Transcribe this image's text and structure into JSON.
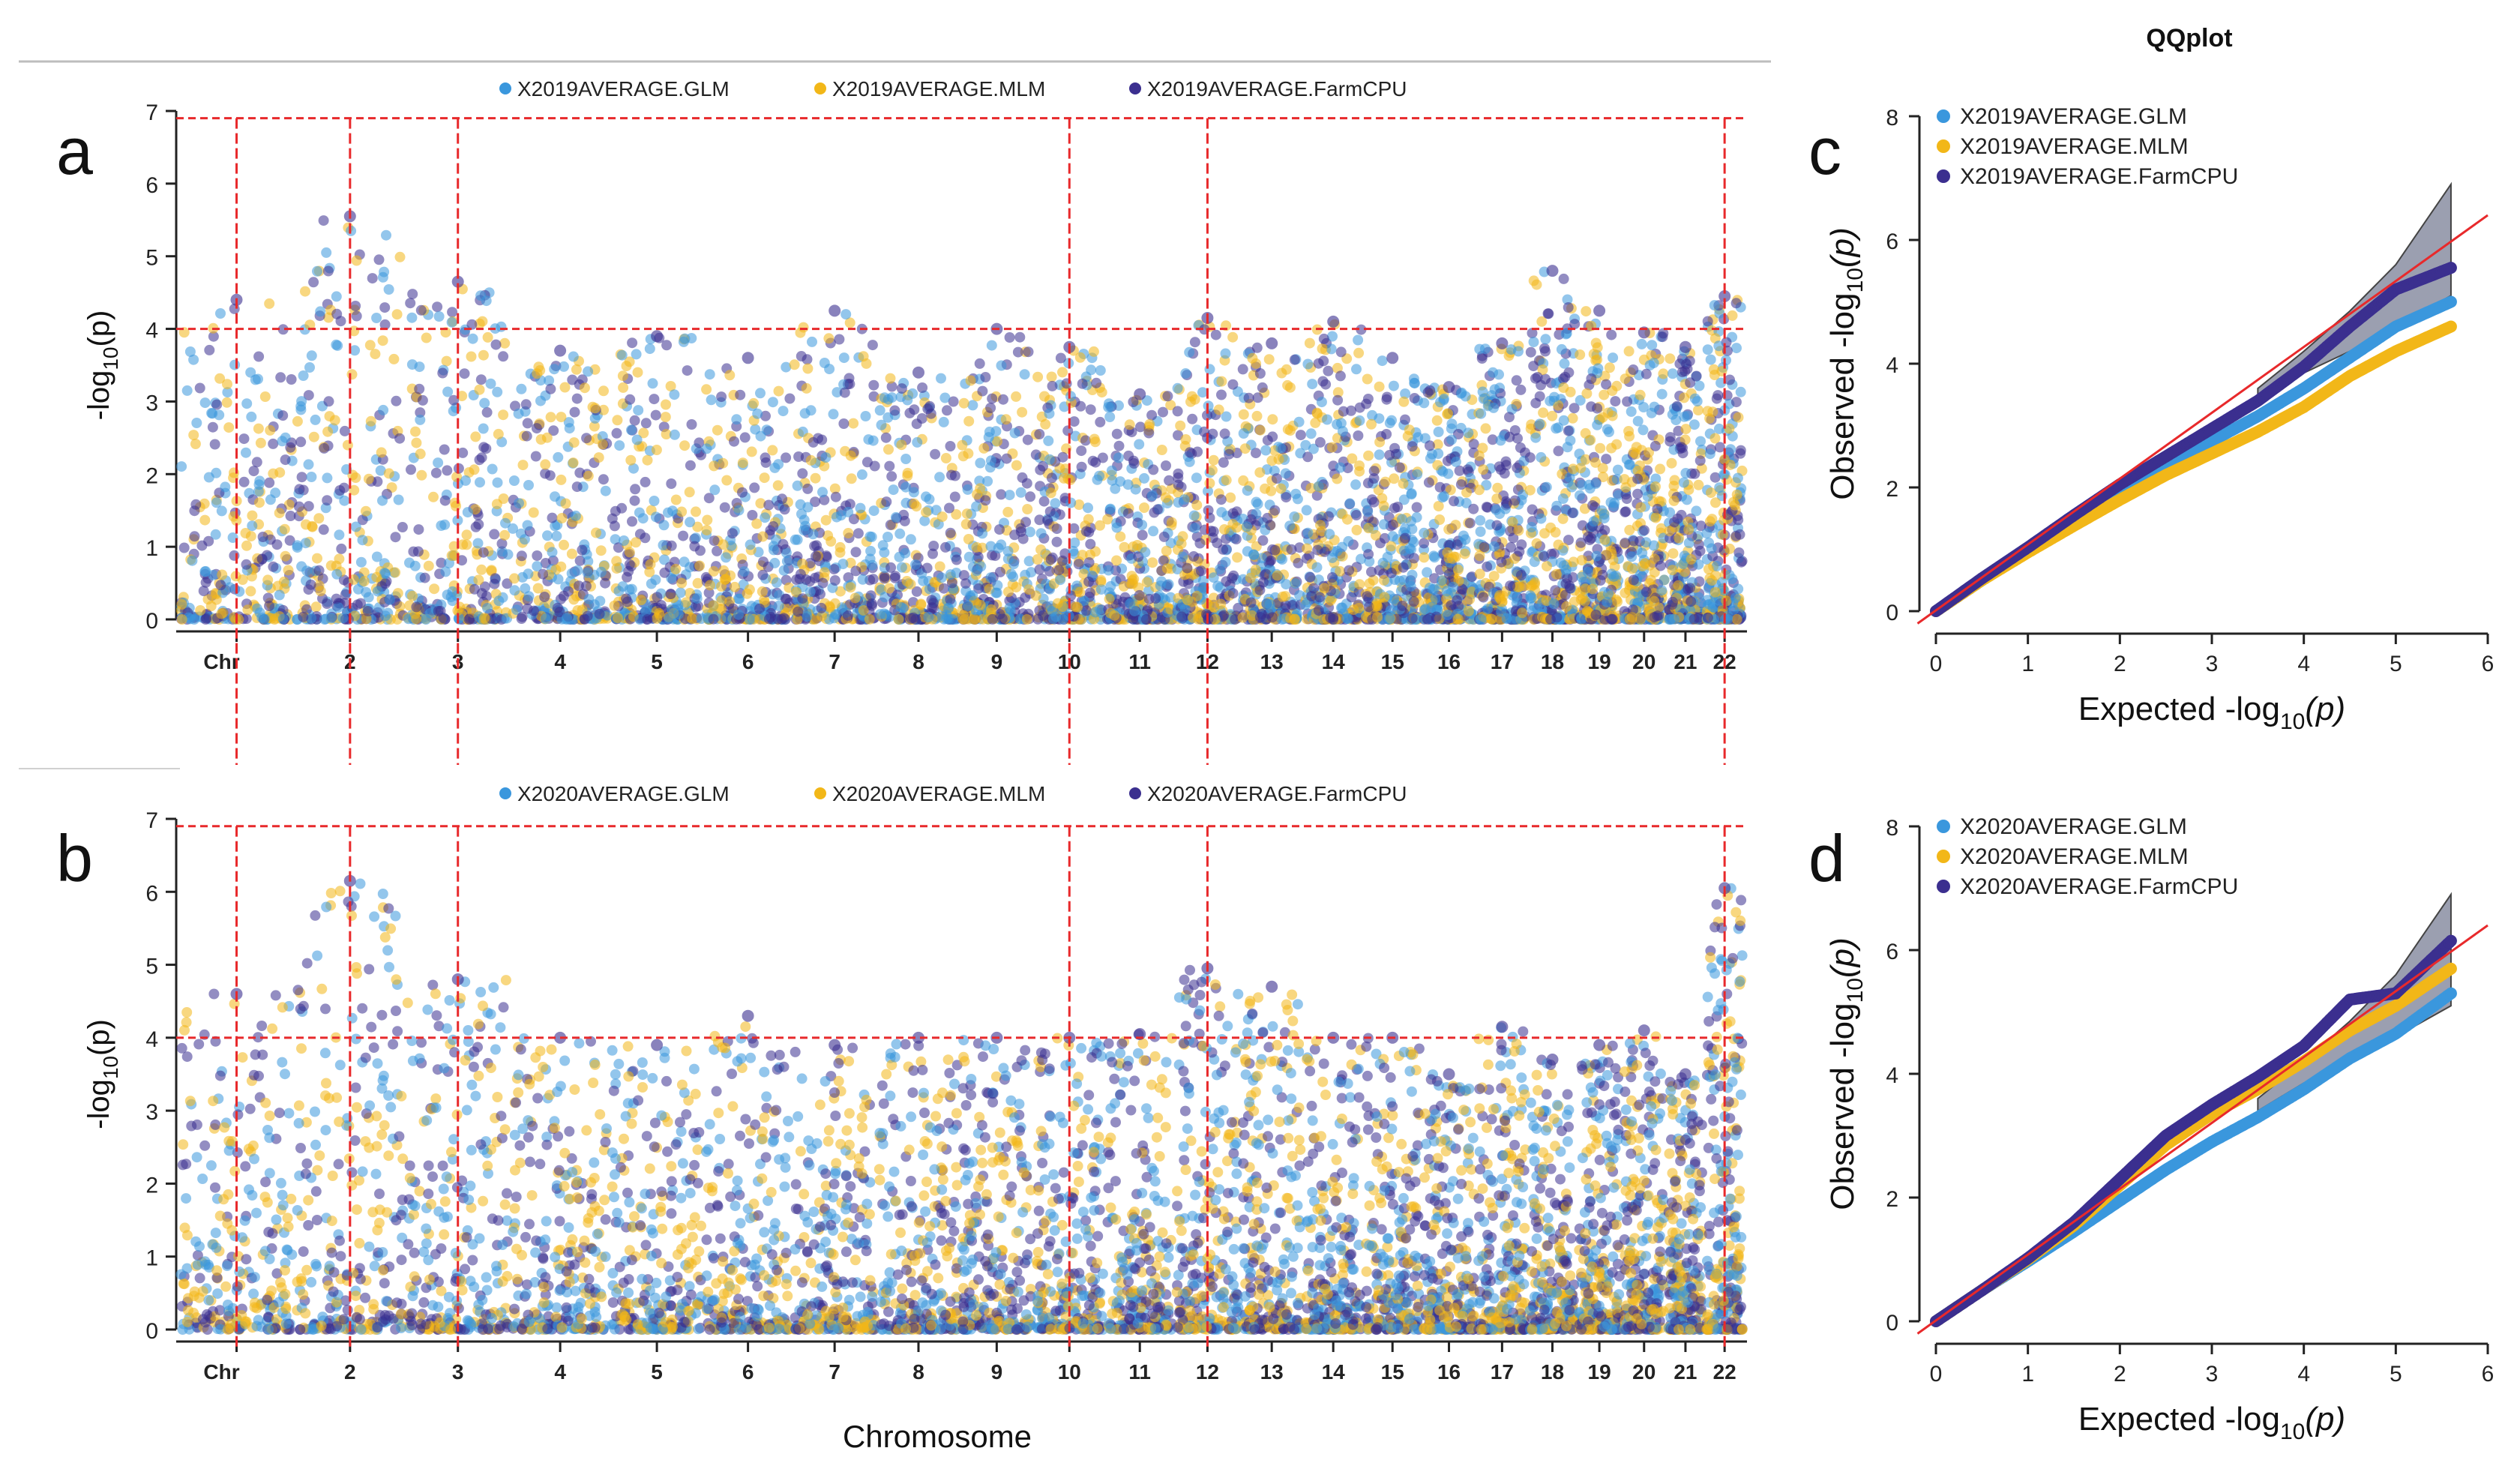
{
  "figure": {
    "qq_title": "QQplot",
    "manhattan_xlabel": "Chromosome",
    "manhattan_chr_prefix": "Chr",
    "manhattan_ylabel_main": "-log",
    "manhattan_ylabel_sub": "10",
    "manhattan_ylabel_tail": "(p)",
    "qq_ylabel_main": "Observed  -log",
    "qq_xlabel_main": "Expected  -log",
    "qq_label_sub": "10",
    "qq_label_tail": "(p)"
  },
  "colors": {
    "GLM": "#3a97dd",
    "MLM": "#f2b718",
    "FarmCPU": "#3b2f8f",
    "threshold": "#e8292b",
    "diagonal": "#e8292b",
    "ci_band": "#7a7f96"
  },
  "chart_data": [
    {
      "panel": "a",
      "type": "scatter",
      "subtype": "manhattan",
      "series": [
        {
          "name": "X2019AVERAGE.GLM",
          "color": "#3a97dd"
        },
        {
          "name": "X2019AVERAGE.MLM",
          "color": "#f2b718"
        },
        {
          "name": "X2019AVERAGE.FarmCPU",
          "color": "#3b2f8f"
        }
      ],
      "xlabel": "",
      "ylabel": "-log10(p)",
      "ylim": [
        0,
        7
      ],
      "yticks": [
        0,
        1,
        2,
        3,
        4,
        5,
        6,
        7
      ],
      "chromosome_labels": [
        "Chr",
        "2",
        "3",
        "4",
        "5",
        "6",
        "7",
        "8",
        "9",
        "10",
        "11",
        "12",
        "13",
        "14",
        "15",
        "16",
        "17",
        "18",
        "19",
        "20",
        "21",
        "22"
      ],
      "threshold_lines": [
        4,
        6.9
      ],
      "highlighted_chromosomes": [
        "1",
        "2",
        "3",
        "10",
        "12",
        "22"
      ],
      "peaks": [
        {
          "chr": "1",
          "max": 4.4
        },
        {
          "chr": "2",
          "max": 5.55
        },
        {
          "chr": "3",
          "max": 4.65
        },
        {
          "chr": "4",
          "max": 3.7
        },
        {
          "chr": "5",
          "max": 3.9
        },
        {
          "chr": "6",
          "max": 3.6
        },
        {
          "chr": "7",
          "max": 4.25
        },
        {
          "chr": "8",
          "max": 3.4
        },
        {
          "chr": "9",
          "max": 4.0
        },
        {
          "chr": "10",
          "max": 3.75
        },
        {
          "chr": "11",
          "max": 3.1
        },
        {
          "chr": "12",
          "max": 4.15
        },
        {
          "chr": "13",
          "max": 3.8
        },
        {
          "chr": "14",
          "max": 4.1
        },
        {
          "chr": "15",
          "max": 3.6
        },
        {
          "chr": "16",
          "max": 3.2
        },
        {
          "chr": "17",
          "max": 3.8
        },
        {
          "chr": "18",
          "max": 4.8
        },
        {
          "chr": "19",
          "max": 4.25
        },
        {
          "chr": "20",
          "max": 3.95
        },
        {
          "chr": "21",
          "max": 3.75
        },
        {
          "chr": "22",
          "max": 4.45
        }
      ]
    },
    {
      "panel": "b",
      "type": "scatter",
      "subtype": "manhattan",
      "series": [
        {
          "name": "X2020AVERAGE.GLM",
          "color": "#3a97dd"
        },
        {
          "name": "X2020AVERAGE.MLM",
          "color": "#f2b718"
        },
        {
          "name": "X2020AVERAGE.FarmCPU",
          "color": "#3b2f8f"
        }
      ],
      "xlabel": "Chromosome",
      "ylabel": "-log10(p)",
      "ylim": [
        0,
        7
      ],
      "yticks": [
        0,
        1,
        2,
        3,
        4,
        5,
        6,
        7
      ],
      "chromosome_labels": [
        "Chr",
        "2",
        "3",
        "4",
        "5",
        "6",
        "7",
        "8",
        "9",
        "10",
        "11",
        "12",
        "13",
        "14",
        "15",
        "16",
        "17",
        "18",
        "19",
        "20",
        "21",
        "22"
      ],
      "threshold_lines": [
        4,
        6.9
      ],
      "highlighted_chromosomes": [
        "1",
        "2",
        "3",
        "10",
        "12",
        "22"
      ],
      "peaks": [
        {
          "chr": "1",
          "max": 4.6
        },
        {
          "chr": "2",
          "max": 6.15
        },
        {
          "chr": "3",
          "max": 4.8
        },
        {
          "chr": "4",
          "max": 4.0
        },
        {
          "chr": "5",
          "max": 3.9
        },
        {
          "chr": "6",
          "max": 4.3
        },
        {
          "chr": "7",
          "max": 3.9
        },
        {
          "chr": "8",
          "max": 4.0
        },
        {
          "chr": "9",
          "max": 4.0
        },
        {
          "chr": "10",
          "max": 4.0
        },
        {
          "chr": "11",
          "max": 4.05
        },
        {
          "chr": "12",
          "max": 4.95
        },
        {
          "chr": "13",
          "max": 4.7
        },
        {
          "chr": "14",
          "max": 4.0
        },
        {
          "chr": "15",
          "max": 4.0
        },
        {
          "chr": "16",
          "max": 3.5
        },
        {
          "chr": "17",
          "max": 4.15
        },
        {
          "chr": "18",
          "max": 3.7
        },
        {
          "chr": "19",
          "max": 3.9
        },
        {
          "chr": "20",
          "max": 4.1
        },
        {
          "chr": "21",
          "max": 3.5
        },
        {
          "chr": "22",
          "max": 6.05
        }
      ]
    },
    {
      "panel": "c",
      "type": "scatter",
      "subtype": "qqplot",
      "title": "QQplot",
      "series": [
        {
          "name": "X2019AVERAGE.GLM",
          "color": "#3a97dd",
          "x": [
            0,
            0.5,
            1,
            1.5,
            2,
            2.5,
            3,
            3.5,
            4,
            4.5,
            5,
            5.6
          ],
          "y": [
            0,
            0.5,
            0.97,
            1.42,
            1.9,
            2.35,
            2.75,
            3.15,
            3.6,
            4.1,
            4.6,
            5.0
          ]
        },
        {
          "name": "X2019AVERAGE.MLM",
          "color": "#f2b718",
          "x": [
            0,
            0.5,
            1,
            1.5,
            2,
            2.5,
            3,
            3.5,
            4,
            4.5,
            5,
            5.6
          ],
          "y": [
            0,
            0.5,
            0.95,
            1.38,
            1.8,
            2.2,
            2.55,
            2.9,
            3.3,
            3.8,
            4.2,
            4.6
          ]
        },
        {
          "name": "X2019AVERAGE.FarmCPU",
          "color": "#3b2f8f",
          "x": [
            0,
            0.5,
            1,
            1.5,
            2,
            2.5,
            3,
            3.5,
            4,
            4.5,
            5,
            5.6
          ],
          "y": [
            0,
            0.53,
            1.03,
            1.55,
            2.05,
            2.5,
            2.95,
            3.4,
            3.95,
            4.6,
            5.2,
            5.55
          ]
        }
      ],
      "xlabel": "Expected -log10(p)",
      "ylabel": "Observed -log10(p)",
      "xlim": [
        0,
        6
      ],
      "ylim": [
        0,
        8
      ],
      "xticks": [
        0,
        1,
        2,
        3,
        4,
        5,
        6
      ],
      "yticks": [
        0,
        2,
        4,
        6,
        8
      ],
      "confidence_band": {
        "x": [
          3.5,
          4,
          4.5,
          5,
          5.6
        ],
        "upper": [
          3.6,
          4.2,
          4.85,
          5.6,
          6.9
        ],
        "lower": [
          3.4,
          3.85,
          4.2,
          4.6,
          5.1
        ]
      }
    },
    {
      "panel": "d",
      "type": "scatter",
      "subtype": "qqplot",
      "series": [
        {
          "name": "X2020AVERAGE.GLM",
          "color": "#3a97dd",
          "x": [
            0,
            0.5,
            1,
            1.5,
            2,
            2.5,
            3,
            3.5,
            4,
            4.5,
            5,
            5.6
          ],
          "y": [
            0,
            0.5,
            0.97,
            1.45,
            1.95,
            2.45,
            2.9,
            3.3,
            3.75,
            4.25,
            4.65,
            5.3
          ]
        },
        {
          "name": "X2020AVERAGE.MLM",
          "color": "#f2b718",
          "x": [
            0,
            0.5,
            1,
            1.5,
            2,
            2.5,
            3,
            3.5,
            4,
            4.5,
            5,
            5.6
          ],
          "y": [
            0,
            0.5,
            1.0,
            1.55,
            2.2,
            2.85,
            3.35,
            3.75,
            4.2,
            4.7,
            5.1,
            5.7
          ]
        },
        {
          "name": "X2020AVERAGE.FarmCPU",
          "color": "#3b2f8f",
          "x": [
            0,
            0.5,
            1,
            1.5,
            2,
            2.5,
            3,
            3.5,
            4,
            4.5,
            5,
            5.6
          ],
          "y": [
            0,
            0.5,
            1.02,
            1.6,
            2.3,
            3.0,
            3.5,
            3.95,
            4.45,
            5.2,
            5.3,
            6.15
          ]
        }
      ],
      "xlabel": "Expected -log10(p)",
      "ylabel": "Observed -log10(p)",
      "xlim": [
        0,
        6
      ],
      "ylim": [
        0,
        8
      ],
      "xticks": [
        0,
        1,
        2,
        3,
        4,
        5,
        6
      ],
      "yticks": [
        0,
        2,
        4,
        6,
        8
      ],
      "confidence_band": {
        "x": [
          3.5,
          4,
          4.5,
          5,
          5.6
        ],
        "upper": [
          3.6,
          4.2,
          4.85,
          5.6,
          6.9
        ],
        "lower": [
          3.4,
          3.85,
          4.2,
          4.6,
          5.1
        ]
      }
    }
  ]
}
